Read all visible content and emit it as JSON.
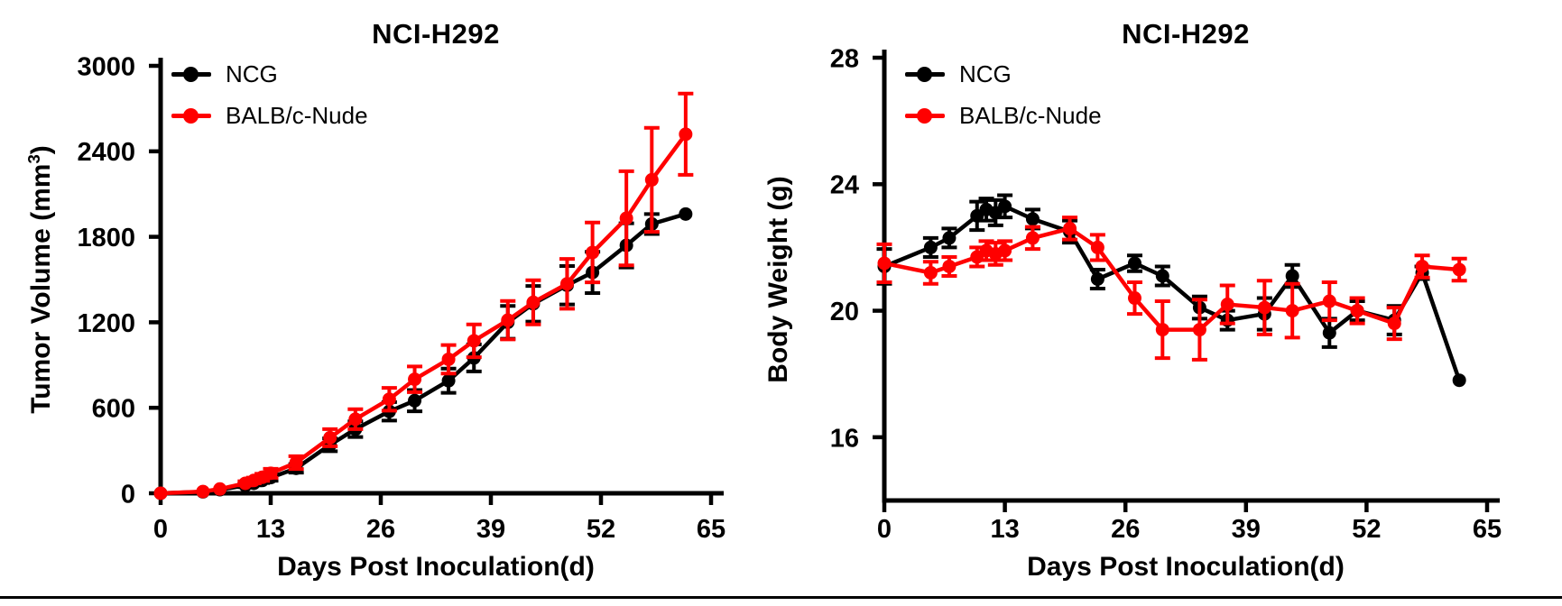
{
  "page": {
    "background": "#ffffff",
    "rule_color": "#000000"
  },
  "chart_data": [
    {
      "type": "line",
      "title": "NCI-H292",
      "xlabel": "Days Post Inoculation(d)",
      "ylabel": {
        "text": "Tumor Volume (mm",
        "sup": "3",
        "end": ")"
      },
      "xlim": [
        0,
        65
      ],
      "ylim": [
        0,
        3000
      ],
      "x_ticks": [
        0,
        13,
        26,
        39,
        52,
        65
      ],
      "y_ticks": [
        0,
        600,
        1200,
        1800,
        2400,
        3000
      ],
      "grid": false,
      "legend_position": "top-left-inside",
      "error_bars": "sem-with-caps",
      "x": [
        0,
        5,
        7,
        10,
        11,
        12,
        13,
        16,
        20,
        23,
        27,
        30,
        34,
        37,
        41,
        44,
        48,
        51,
        55,
        58,
        62
      ],
      "series": [
        {
          "name": "NCG",
          "color": "#000000",
          "marker": "circle",
          "values": [
            0,
            10,
            25,
            55,
            70,
            90,
            110,
            175,
            340,
            450,
            575,
            650,
            790,
            950,
            1200,
            1330,
            1460,
            1550,
            1740,
            1890,
            1960
          ],
          "errors": [
            0,
            0,
            0,
            12,
            15,
            18,
            22,
            30,
            45,
            55,
            65,
            75,
            85,
            95,
            115,
            125,
            135,
            145,
            155,
            70,
            0
          ]
        },
        {
          "name": "BALB/c-Nude",
          "color": "#ff0000",
          "marker": "circle",
          "values": [
            0,
            12,
            30,
            70,
            90,
            112,
            140,
            215,
            390,
            520,
            660,
            800,
            940,
            1070,
            1215,
            1340,
            1470,
            1690,
            1930,
            2200,
            2520
          ],
          "errors": [
            0,
            0,
            0,
            15,
            20,
            25,
            32,
            45,
            60,
            70,
            80,
            90,
            100,
            115,
            135,
            155,
            175,
            210,
            330,
            365,
            285
          ]
        }
      ]
    },
    {
      "type": "line",
      "title": "NCI-H292",
      "xlabel": "Days Post Inoculation(d)",
      "ylabel": {
        "text": "Body Weight (g)",
        "sup": "",
        "end": ""
      },
      "xlim": [
        0,
        65
      ],
      "ylim": [
        14,
        28
      ],
      "x_ticks": [
        0,
        13,
        26,
        39,
        52,
        65
      ],
      "y_ticks": [
        16,
        20,
        24,
        28
      ],
      "grid": false,
      "legend_position": "top-left-inside",
      "error_bars": "sem-with-caps",
      "x": [
        0,
        5,
        7,
        10,
        11,
        12,
        13,
        16,
        20,
        23,
        27,
        30,
        34,
        37,
        41,
        44,
        48,
        51,
        55,
        58,
        62
      ],
      "series": [
        {
          "name": "NCG",
          "color": "#000000",
          "marker": "circle",
          "values": [
            21.4,
            22.0,
            22.3,
            23.0,
            23.2,
            23.1,
            23.3,
            22.9,
            22.5,
            21.0,
            21.5,
            21.1,
            20.1,
            19.7,
            19.9,
            21.1,
            19.3,
            20.0,
            19.7,
            21.2,
            17.8
          ],
          "errors": [
            0.55,
            0.3,
            0.3,
            0.45,
            0.35,
            0.4,
            0.35,
            0.3,
            0.35,
            0.3,
            0.25,
            0.3,
            0.35,
            0.3,
            0.5,
            0.35,
            0.45,
            0.3,
            0.45,
            0.2,
            0
          ]
        },
        {
          "name": "BALB/c-Nude",
          "color": "#ff0000",
          "marker": "circle",
          "values": [
            21.5,
            21.2,
            21.4,
            21.7,
            21.9,
            21.8,
            21.9,
            22.3,
            22.6,
            22.0,
            20.4,
            19.4,
            19.4,
            20.2,
            20.1,
            20.0,
            20.3,
            20.0,
            19.6,
            21.4,
            21.3
          ],
          "errors": [
            0.6,
            0.35,
            0.3,
            0.3,
            0.3,
            0.35,
            0.3,
            0.35,
            0.35,
            0.4,
            0.5,
            0.9,
            0.95,
            0.6,
            0.85,
            0.85,
            0.6,
            0.4,
            0.5,
            0.35,
            0.35
          ]
        }
      ]
    }
  ]
}
